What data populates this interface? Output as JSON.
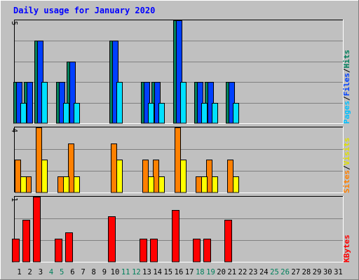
{
  "chart_data": {
    "type": "bar",
    "title": "Daily usage for January 2020",
    "days": [
      "1",
      "2",
      "3",
      "4",
      "5",
      "6",
      "7",
      "8",
      "9",
      "10",
      "11",
      "12",
      "13",
      "14",
      "15",
      "16",
      "17",
      "18",
      "19",
      "20",
      "21",
      "22",
      "23",
      "24",
      "25",
      "26",
      "27",
      "28",
      "29",
      "30",
      "31"
    ],
    "weekend_days": [
      "4",
      "5",
      "11",
      "12",
      "18",
      "19",
      "25",
      "26"
    ],
    "panels": [
      {
        "name": "requests",
        "ymax_label": "5",
        "ymax": 5,
        "series": [
          {
            "name": "Pages",
            "color": "#00e0ff",
            "values": [
              1,
              0,
              2,
              0,
              1,
              1,
              0,
              0,
              0,
              2,
              0,
              0,
              1,
              1,
              0,
              2,
              0,
              1,
              1,
              0,
              1,
              0,
              0,
              0,
              0,
              0,
              0,
              0,
              0,
              0,
              0
            ]
          },
          {
            "name": "Files",
            "color": "#0040ff",
            "values": [
              2,
              2,
              4,
              0,
              2,
              3,
              0,
              0,
              0,
              4,
              0,
              0,
              2,
              2,
              0,
              5,
              0,
              2,
              2,
              0,
              2,
              0,
              0,
              0,
              0,
              0,
              0,
              0,
              0,
              0,
              0
            ]
          },
          {
            "name": "Hits",
            "color": "#00805c",
            "values": [
              2,
              2,
              4,
              0,
              2,
              3,
              0,
              0,
              0,
              4,
              0,
              0,
              2,
              2,
              0,
              5,
              0,
              2,
              2,
              0,
              2,
              0,
              0,
              0,
              0,
              0,
              0,
              0,
              0,
              0,
              0
            ]
          }
        ],
        "legend": [
          {
            "text": "Pages",
            "color": "#00c0ff"
          },
          {
            "text": "/",
            "color": "#000000"
          },
          {
            "text": "Files",
            "color": "#0040ff"
          },
          {
            "text": "/",
            "color": "#000000"
          },
          {
            "text": "Hits",
            "color": "#00805c"
          }
        ]
      },
      {
        "name": "visits",
        "ymax_label": "4",
        "ymax": 4,
        "series": [
          {
            "name": "Visits",
            "color": "#ffff00",
            "values": [
              1,
              0,
              2,
              0,
              1,
              1,
              0,
              0,
              0,
              2,
              0,
              0,
              1,
              1,
              0,
              2,
              0,
              1,
              1,
              0,
              1,
              0,
              0,
              0,
              0,
              0,
              0,
              0,
              0,
              0,
              0
            ]
          },
          {
            "name": "Sites",
            "color": "#ff8000",
            "values": [
              2,
              1,
              4,
              0,
              1,
              3,
              0,
              0,
              0,
              3,
              0,
              0,
              2,
              2,
              0,
              4,
              0,
              1,
              2,
              0,
              2,
              0,
              0,
              0,
              0,
              0,
              0,
              0,
              0,
              0,
              0
            ]
          }
        ],
        "legend": [
          {
            "text": "Sites",
            "color": "#ff8000"
          },
          {
            "text": "/",
            "color": "#000000"
          },
          {
            "text": "Visits",
            "color": "#e0e000"
          }
        ]
      },
      {
        "name": "kbytes",
        "ymax_label": "1",
        "ymax": 1,
        "series": [
          {
            "name": "KBytes",
            "color": "#ff0000",
            "values": [
              0.35,
              0.65,
              1.0,
              0,
              0.35,
              0.45,
              0,
              0,
              0,
              0.7,
              0,
              0,
              0.35,
              0.35,
              0,
              0.8,
              0,
              0.35,
              0.35,
              0,
              0.65,
              0,
              0,
              0,
              0,
              0,
              0,
              0,
              0,
              0,
              0
            ]
          }
        ],
        "legend": [
          {
            "text": "KBytes",
            "color": "#ff0000"
          }
        ]
      }
    ],
    "colors": {
      "background": "#c0c0c0",
      "title": "#0000ff",
      "grid": "#808080",
      "weekday_label": "#000000",
      "weekend_label": "#00805c"
    }
  }
}
